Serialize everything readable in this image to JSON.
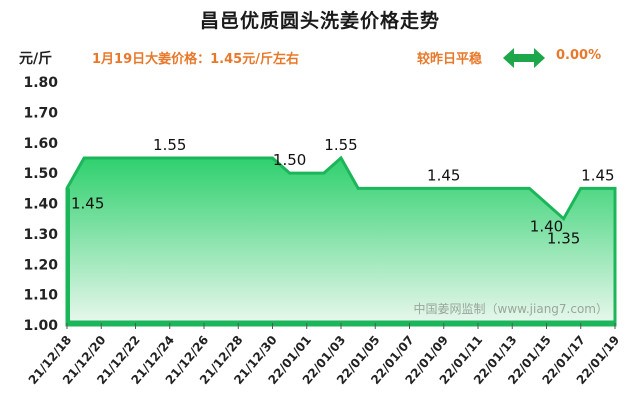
{
  "header": {
    "title": "昌邑优质圆头洗姜价格走势",
    "unit": "元/斤",
    "price_note": "1月19日大姜价格：1.45元/斤左右",
    "compare_label": "较昨日平稳",
    "compare_value": "0.00%",
    "compare_icon": "double-arrow-icon"
  },
  "colors": {
    "accent_orange": "#e8782a",
    "line_green": "#1cb65a",
    "fill_top": "#2fd06e",
    "fill_bottom": "#eaf8ee",
    "arrow_green": "#1ea64a"
  },
  "chart_data": {
    "type": "area",
    "title": "昌邑优质圆头洗姜价格走势",
    "ylabel": "元/斤",
    "ylim": [
      1.0,
      1.8
    ],
    "yticks": [
      "1.00",
      "1.10",
      "1.20",
      "1.30",
      "1.40",
      "1.50",
      "1.60",
      "1.70",
      "1.80"
    ],
    "grid": false,
    "xlim": [
      "2021-12-18",
      "2022-01-19"
    ],
    "xtick_labels": [
      "21/12/18",
      "21/12/20",
      "21/12/22",
      "21/12/24",
      "21/12/26",
      "21/12/28",
      "21/12/30",
      "22/01/01",
      "22/01/03",
      "22/01/05",
      "22/01/07",
      "22/01/09",
      "22/01/11",
      "22/01/13",
      "22/01/15",
      "22/01/17",
      "22/01/19"
    ],
    "points": [
      {
        "x": "2021-12-18",
        "y": 1.45
      },
      {
        "x": "2021-12-19",
        "y": 1.55
      },
      {
        "x": "2021-12-30",
        "y": 1.55
      },
      {
        "x": "2021-12-31",
        "y": 1.5
      },
      {
        "x": "2022-01-02",
        "y": 1.5
      },
      {
        "x": "2022-01-03",
        "y": 1.55
      },
      {
        "x": "2022-01-04",
        "y": 1.45
      },
      {
        "x": "2022-01-14",
        "y": 1.45
      },
      {
        "x": "2022-01-15",
        "y": 1.4
      },
      {
        "x": "2022-01-16",
        "y": 1.35
      },
      {
        "x": "2022-01-17",
        "y": 1.45
      },
      {
        "x": "2022-01-19",
        "y": 1.45
      }
    ],
    "data_labels": [
      {
        "x": "2021-12-18",
        "y": 1.45,
        "text": "1.45"
      },
      {
        "x": "2021-12-24",
        "y": 1.55,
        "text": "1.55"
      },
      {
        "x": "2021-12-31",
        "y": 1.5,
        "text": "1.50"
      },
      {
        "x": "2022-01-03",
        "y": 1.55,
        "text": "1.55"
      },
      {
        "x": "2022-01-09",
        "y": 1.45,
        "text": "1.45"
      },
      {
        "x": "2022-01-15",
        "y": 1.4,
        "text": "1.40"
      },
      {
        "x": "2022-01-16",
        "y": 1.35,
        "text": "1.35"
      },
      {
        "x": "2022-01-18",
        "y": 1.45,
        "text": "1.45"
      }
    ],
    "watermark": "中国姜网监制（www.jiang7.com）"
  }
}
